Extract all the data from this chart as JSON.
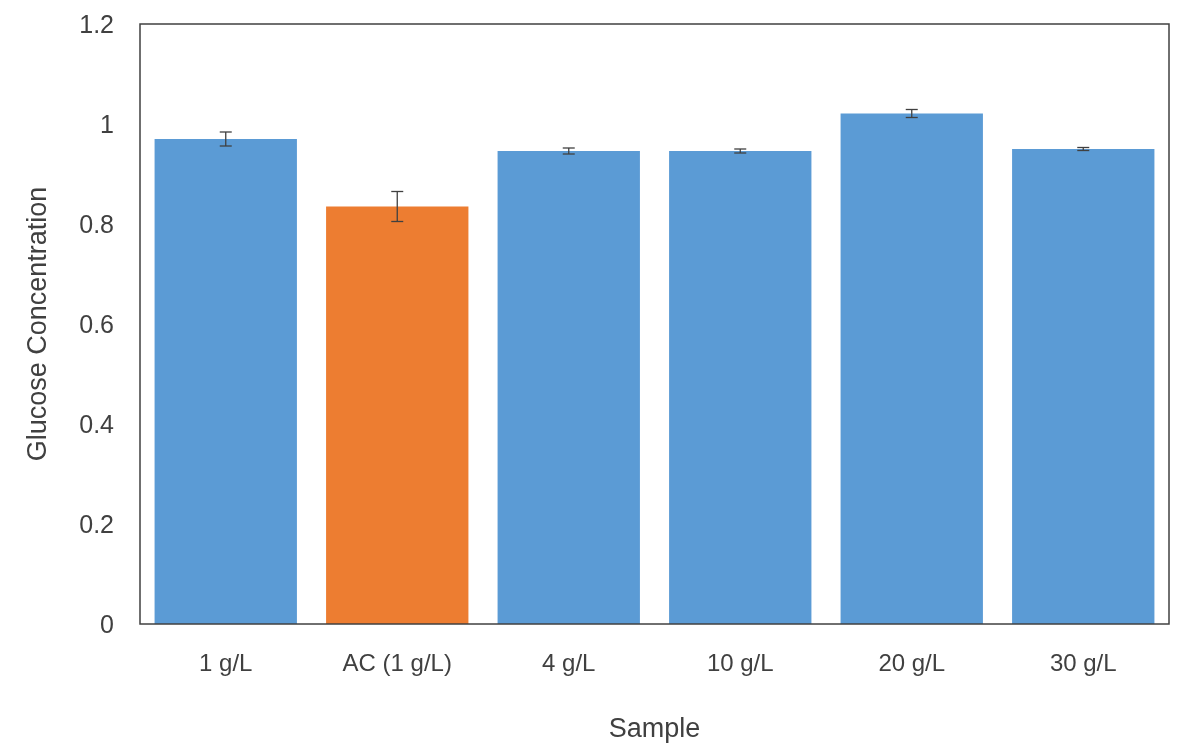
{
  "chart_data": {
    "type": "bar",
    "xlabel": "Sample",
    "ylabel": "Glucose Concentration",
    "categories": [
      "1 g/L",
      "AC (1 g/L)",
      "4 g/L",
      "10 g/L",
      "20 g/L",
      "30 g/L"
    ],
    "values": [
      0.97,
      0.835,
      0.946,
      0.946,
      1.021,
      0.95
    ],
    "colors": [
      "#5b9bd5",
      "#ed7d31",
      "#5b9bd5",
      "#5b9bd5",
      "#5b9bd5",
      "#5b9bd5"
    ],
    "errors": [
      0.014,
      0.03,
      0.006,
      0.004,
      0.008,
      0.003
    ],
    "ylim": [
      0,
      1.2
    ],
    "yticks": [
      0,
      0.2,
      0.4,
      0.6,
      0.8,
      1,
      1.2
    ],
    "grid": false
  }
}
